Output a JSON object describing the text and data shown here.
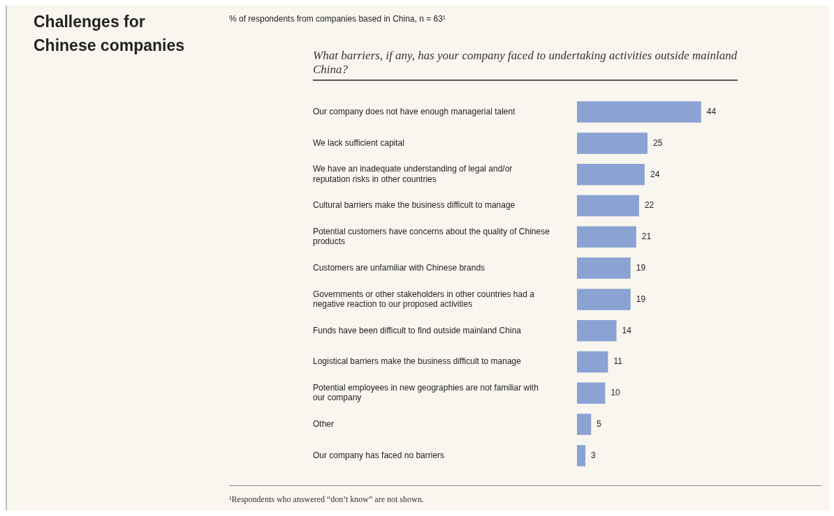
{
  "chart_data": {
    "type": "bar",
    "orientation": "horizontal",
    "title": "Challenges for Chinese companies",
    "subtitle": "% of respondents from companies based in China, n = 63¹",
    "annotations": [
      "What barriers, if any, has your company faced to undertaking activities outside mainland China?",
      "¹Respondents who answered “don’t know” are not shown."
    ],
    "categories": [
      "Our company does not have enough managerial talent",
      "We lack sufficient capital",
      "We have an inadequate understanding of legal and/or reputation risks in other countries",
      "Cultural barriers make the business difficult to manage",
      "Potential customers have concerns about the quality of Chinese products",
      "Customers are unfamiliar with Chinese brands",
      "Governments or other stakeholders in other countries had a negative reaction to our proposed activities",
      "Funds have been difficult to find outside mainland China",
      "Logistical barriers make the business difficult to manage",
      "Potential employees in new geographies are not familiar with our company",
      "Other",
      "Our company has faced no barriers"
    ],
    "values": [
      44,
      25,
      24,
      22,
      21,
      19,
      19,
      14,
      11,
      10,
      5,
      3
    ],
    "color": "#8aa3d3",
    "data_labels": true,
    "legend": false,
    "grid": false
  }
}
